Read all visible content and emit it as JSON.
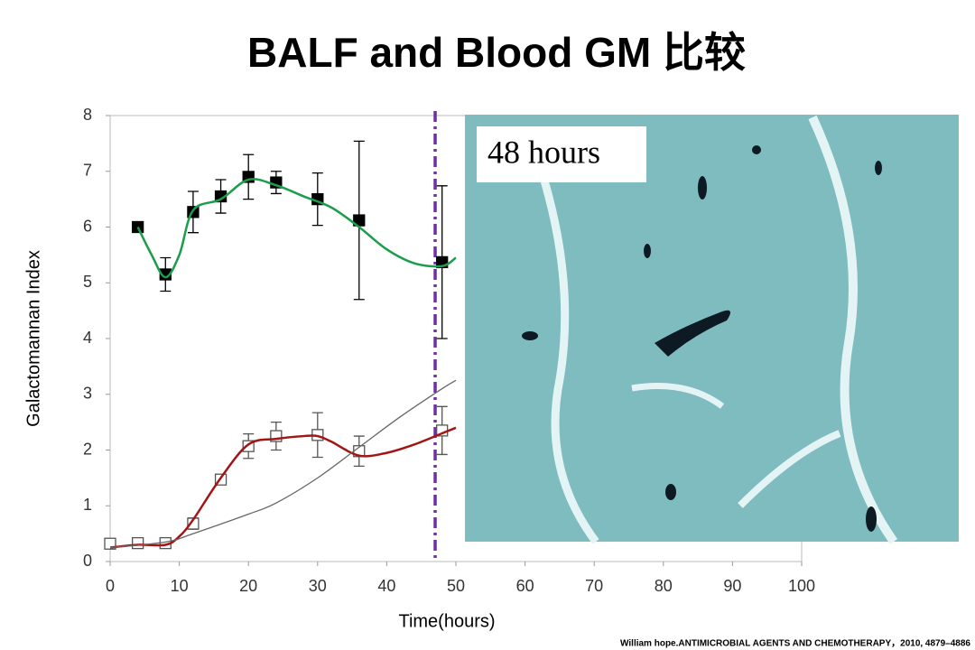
{
  "title": "BALF and Blood  GM 比较",
  "citation": "William hope.ANTIMICROBIAL AGENTS AND CHEMOTHERAPY，2010, 4879–4886",
  "image_label": "48 hours",
  "chart_data": {
    "type": "line",
    "x_label": "Time(hours)",
    "y_label": "Galactomannan Index",
    "xlim": [
      0,
      100
    ],
    "xticks": [
      0,
      10,
      20,
      30,
      40,
      50,
      60,
      70,
      80,
      90,
      100
    ],
    "ylim": [
      0,
      8
    ],
    "yticks": [
      0,
      1,
      2,
      3,
      4,
      5,
      6,
      7,
      8
    ],
    "vline": {
      "x": 47,
      "color": "#7030a0"
    },
    "series": [
      {
        "marker": "filled-square",
        "color": "#000000",
        "x": [
          4,
          8,
          12,
          16,
          20,
          24,
          30,
          36,
          48
        ],
        "values": [
          6.0,
          5.15,
          6.27,
          6.55,
          6.9,
          6.8,
          6.5,
          6.12,
          5.37
        ],
        "errors": [
          null,
          0.3,
          0.37,
          0.3,
          0.4,
          0.2,
          0.47,
          1.42,
          1.37
        ]
      },
      {
        "marker": "open-square",
        "color": "#555555",
        "x": [
          0,
          4,
          8,
          12,
          16,
          20,
          24,
          30,
          36,
          48
        ],
        "values": [
          0.32,
          0.33,
          0.33,
          0.68,
          1.47,
          2.07,
          2.25,
          2.27,
          1.98,
          2.35
        ],
        "errors": [
          null,
          null,
          null,
          0.1,
          null,
          0.22,
          0.25,
          0.4,
          0.27,
          0.43
        ]
      },
      {
        "marker": "none",
        "color": "#1a9e4a",
        "x": [
          4,
          6,
          8,
          10,
          12,
          16,
          20,
          24,
          28,
          32,
          36,
          40,
          44,
          48,
          50
        ],
        "values": [
          6.0,
          5.5,
          5.1,
          5.5,
          6.3,
          6.5,
          6.85,
          6.75,
          6.55,
          6.35,
          6.0,
          5.6,
          5.35,
          5.3,
          5.45
        ]
      },
      {
        "marker": "none",
        "color": "#a31515",
        "x": [
          0,
          4,
          8,
          10,
          12,
          16,
          20,
          24,
          28,
          30,
          32,
          36,
          40,
          44,
          48,
          50
        ],
        "values": [
          0.25,
          0.3,
          0.3,
          0.45,
          0.75,
          1.5,
          2.1,
          2.2,
          2.25,
          2.25,
          2.15,
          1.9,
          1.95,
          2.1,
          2.3,
          2.4
        ]
      },
      {
        "marker": "none",
        "color": "#666666",
        "x": [
          0,
          8,
          12,
          20,
          24,
          30,
          36,
          42,
          48,
          50
        ],
        "values": [
          0.25,
          0.35,
          0.5,
          0.85,
          1.05,
          1.5,
          2.05,
          2.6,
          3.1,
          3.25
        ]
      }
    ]
  }
}
